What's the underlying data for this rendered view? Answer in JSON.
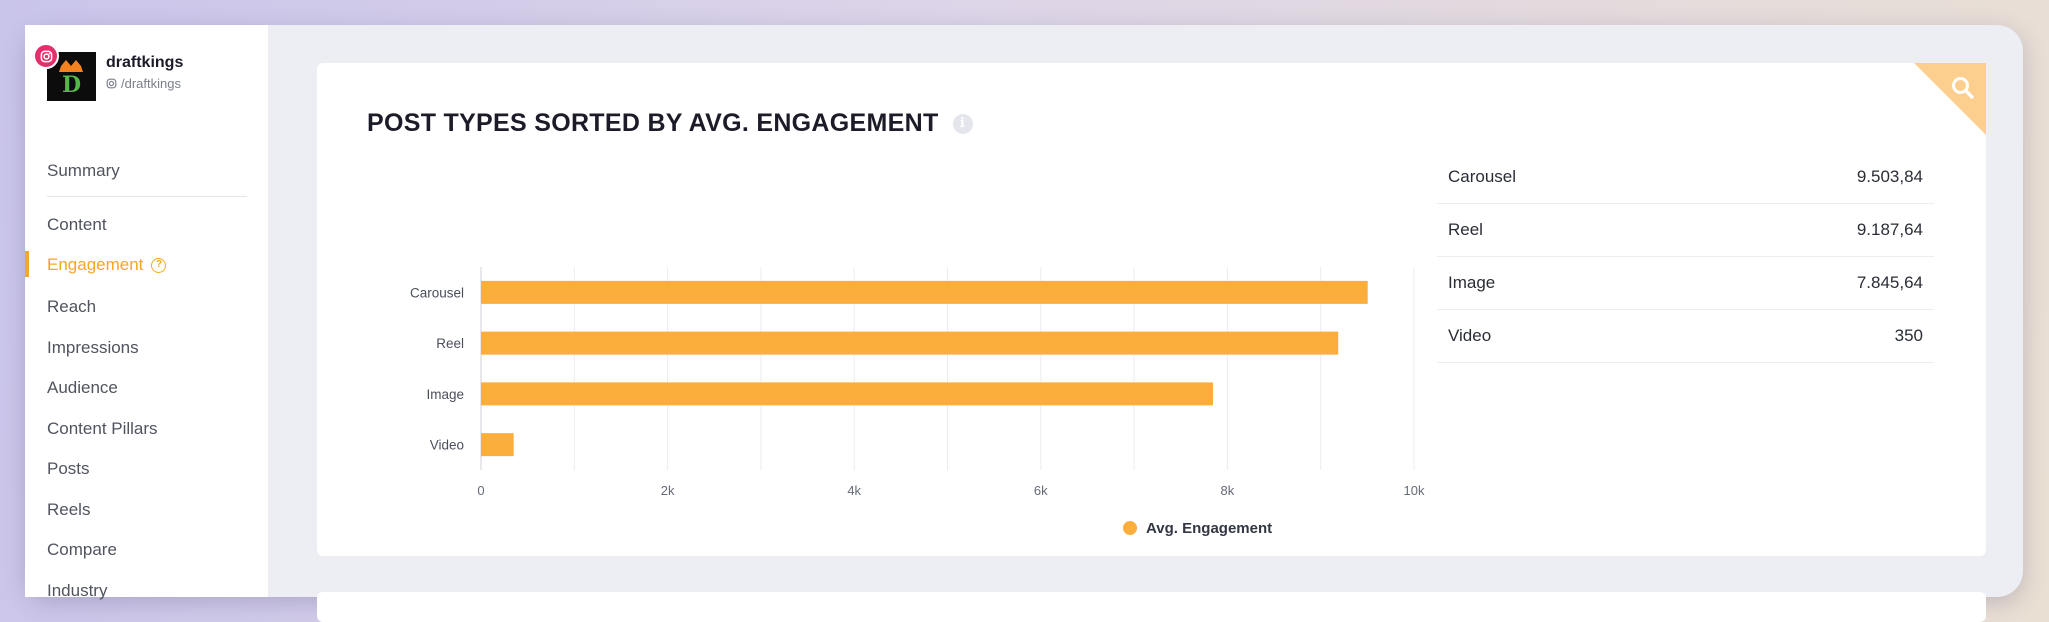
{
  "profile": {
    "name": "draftkings",
    "handle": "/draftkings",
    "network_icon": "instagram-icon"
  },
  "sidebar": {
    "items": [
      {
        "label": "Summary"
      },
      {
        "label": "Content"
      },
      {
        "label": "Engagement",
        "active": true
      },
      {
        "label": "Reach"
      },
      {
        "label": "Impressions"
      },
      {
        "label": "Audience"
      },
      {
        "label": "Content Pillars"
      },
      {
        "label": "Posts"
      },
      {
        "label": "Reels"
      },
      {
        "label": "Compare"
      },
      {
        "label": "Industry"
      }
    ]
  },
  "card": {
    "title": "POST TYPES SORTED BY AVG. ENGAGEMENT",
    "info_icon": "info-icon",
    "zoom_icon": "search-icon"
  },
  "chart_data": {
    "type": "bar",
    "orientation": "horizontal",
    "categories": [
      "Carousel",
      "Reel",
      "Image",
      "Video"
    ],
    "series": [
      {
        "name": "Avg. Engagement",
        "values": [
          9503.84,
          9187.64,
          7845.64,
          350
        ],
        "color": "#fbae3c"
      }
    ],
    "xlim": [
      0,
      10000
    ],
    "xticks": [
      "0",
      "2k",
      "4k",
      "6k",
      "8k",
      "10k"
    ],
    "grid": true,
    "legend": "bottom-center"
  },
  "table": {
    "rows": [
      {
        "label": "Carousel",
        "value": "9.503,84"
      },
      {
        "label": "Reel",
        "value": "9.187,64"
      },
      {
        "label": "Image",
        "value": "7.845,64"
      },
      {
        "label": "Video",
        "value": "350"
      }
    ]
  },
  "colors": {
    "accent": "#f5a623",
    "bar": "#fbae3c",
    "instagram": "#e1306c"
  }
}
